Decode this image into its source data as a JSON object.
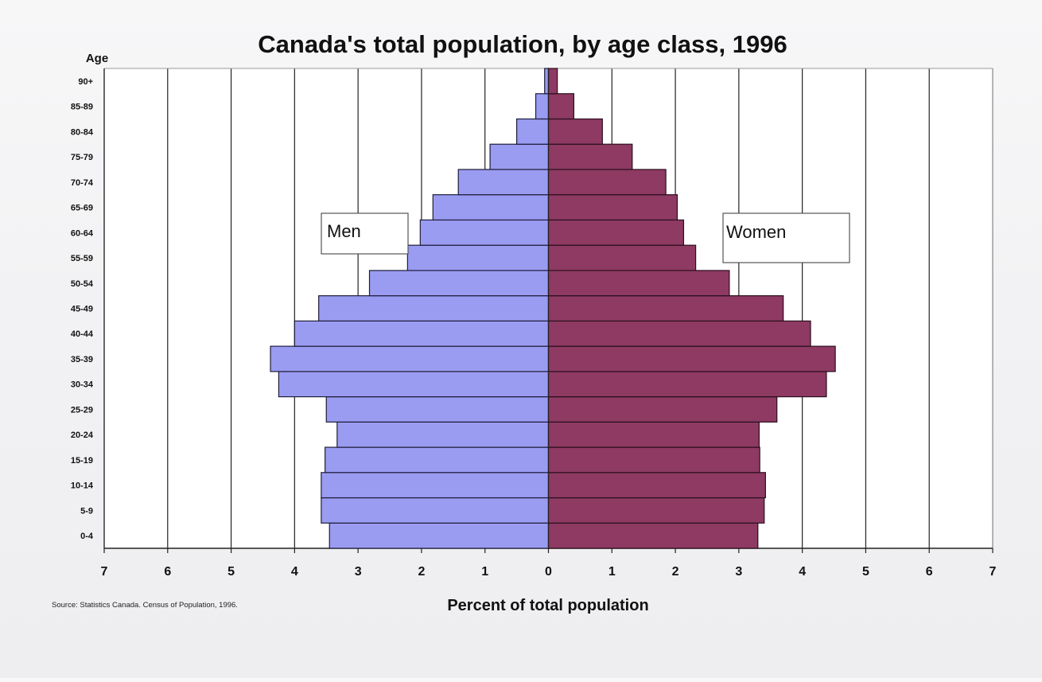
{
  "chart_data": {
    "type": "bar",
    "orientation": "horizontal",
    "title": "Canada's total population, by age class, 1996",
    "ylabel": "Age",
    "xlabel": "Percent of total population",
    "source": "Source:  Statistics Canada.  Census of Population, 1996.",
    "categories": [
      "0-4",
      "5-9",
      "10-14",
      "15-19",
      "20-24",
      "25-29",
      "30-34",
      "35-39",
      "40-44",
      "45-49",
      "50-54",
      "55-59",
      "60-64",
      "65-69",
      "70-74",
      "75-79",
      "80-84",
      "85-89",
      "90+"
    ],
    "series": [
      {
        "name": "Men",
        "color": "#9a9cf2",
        "values": [
          3.45,
          3.58,
          3.58,
          3.52,
          3.33,
          3.5,
          4.25,
          4.38,
          4.0,
          3.62,
          2.82,
          2.22,
          2.02,
          1.82,
          1.42,
          0.92,
          0.5,
          0.2,
          0.06
        ]
      },
      {
        "name": "Women",
        "color": "#8e3a62",
        "values": [
          3.3,
          3.4,
          3.42,
          3.33,
          3.32,
          3.6,
          4.38,
          4.52,
          4.13,
          3.7,
          2.85,
          2.32,
          2.13,
          2.03,
          1.85,
          1.32,
          0.85,
          0.4,
          0.14
        ]
      }
    ],
    "xlim": [
      -7,
      7
    ],
    "xticks": [
      -7,
      -6,
      -5,
      -4,
      -3,
      -2,
      -1,
      0,
      1,
      2,
      3,
      4,
      5,
      6,
      7
    ],
    "xtick_labels": [
      "7",
      "6",
      "5",
      "4",
      "3",
      "2",
      "1",
      "0",
      "1",
      "2",
      "3",
      "4",
      "5",
      "6",
      "7"
    ],
    "grid": "vertical",
    "legend": "inline labels: Men left, Women right"
  }
}
